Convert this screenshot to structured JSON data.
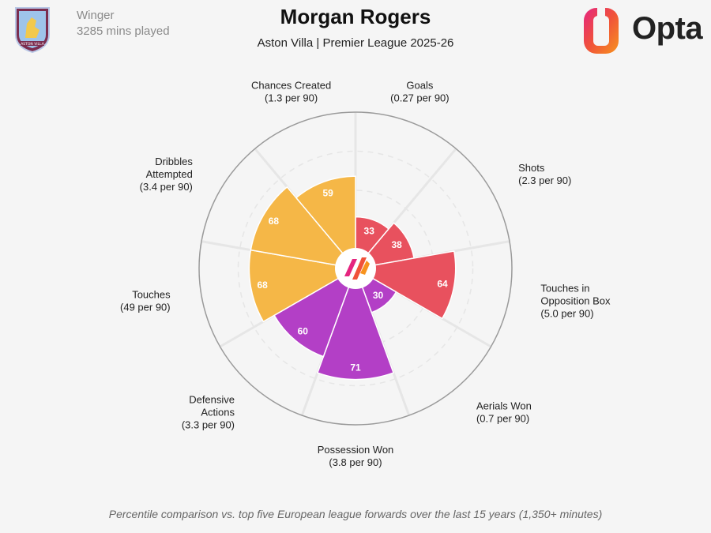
{
  "header": {
    "position": "Winger",
    "minutes": "3285 mins played",
    "player_name": "Morgan Rogers",
    "subtitle": "Aston Villa | Premier League 2025-26",
    "brand": "Opta",
    "badge_text": "ASTON VILLA"
  },
  "footnote": "Percentile comparison vs. top five European league forwards over the last 15 years (1,350+ minutes)",
  "colors": {
    "attacking": "#e8515e",
    "possession": "#b33fc6",
    "playmaking": "#f5b747",
    "ring": "#9a9a9a",
    "grid": "#e6e6e6",
    "background": "#f5f5f5"
  },
  "chart_data": {
    "type": "polar-bar",
    "scale": [
      0,
      100
    ],
    "grid_rings": [
      25,
      50,
      75,
      100
    ],
    "metrics": [
      {
        "name": "Goals",
        "value_label": "(0.27 per 90)",
        "percentile": 33,
        "group": "attacking"
      },
      {
        "name": "Shots",
        "value_label": "(2.3 per 90)",
        "percentile": 38,
        "group": "attacking"
      },
      {
        "name": "Touches in Opposition Box",
        "lines": [
          "Touches in",
          "Opposition Box"
        ],
        "value_label": "(5.0 per 90)",
        "percentile": 64,
        "group": "attacking"
      },
      {
        "name": "Aerials Won",
        "value_label": "(0.7 per 90)",
        "percentile": 30,
        "group": "possession"
      },
      {
        "name": "Possession Won",
        "value_label": "(3.8 per 90)",
        "percentile": 71,
        "group": "possession"
      },
      {
        "name": "Defensive Actions",
        "lines": [
          "Defensive",
          "Actions"
        ],
        "value_label": "(3.3 per 90)",
        "percentile": 60,
        "group": "possession"
      },
      {
        "name": "Touches",
        "value_label": "(49 per 90)",
        "percentile": 68,
        "group": "playmaking"
      },
      {
        "name": "Dribbles Attempted",
        "lines": [
          "Dribbles",
          "Attempted"
        ],
        "value_label": "(3.4 per 90)",
        "percentile": 68,
        "group": "playmaking"
      },
      {
        "name": "Chances Created",
        "value_label": "(1.3 per 90)",
        "percentile": 59,
        "group": "playmaking"
      }
    ]
  }
}
